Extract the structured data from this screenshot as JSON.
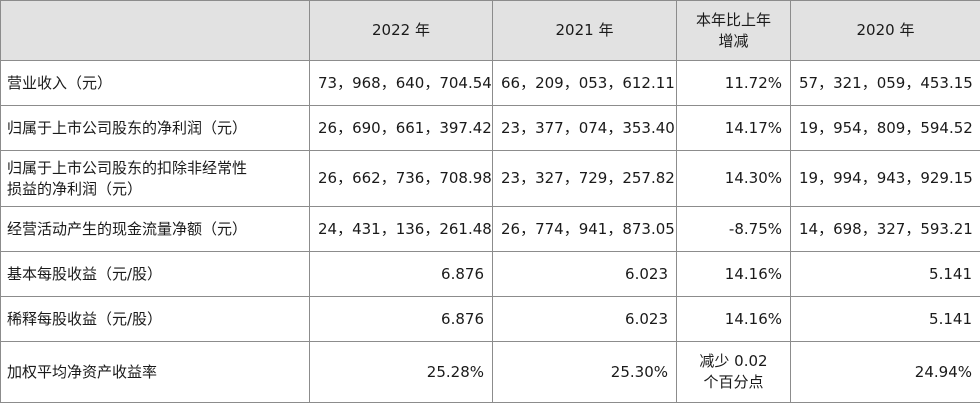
{
  "header": {
    "col0": "",
    "col1": "2022 年",
    "col2": "2021 年",
    "col3_line1": "本年比上年",
    "col3_line2": "增减",
    "col4": "2020 年"
  },
  "rows": [
    {
      "label": "营业收入（元）",
      "y2022": "73，968，640，704.54",
      "y2021": "66，209，053，612.11",
      "change": "11.72%",
      "y2020": "57，321，059，453.15"
    },
    {
      "label": "归属于上市公司股东的净利润（元）",
      "y2022": "26，690，661，397.42",
      "y2021": "23，377，074，353.40",
      "change": "14.17%",
      "y2020": "19，954，809，594.52"
    },
    {
      "label_line1": "归属于上市公司股东的扣除非经常性",
      "label_line2": "损益的净利润（元）",
      "y2022": "26，662，736，708.98",
      "y2021": "23，327，729，257.82",
      "change": "14.30%",
      "y2020": "19，994，943，929.15"
    },
    {
      "label": "经营活动产生的现金流量净额（元）",
      "y2022": "24，431，136，261.48",
      "y2021": "26，774，941，873.05",
      "change": "-8.75%",
      "y2020": "14，698，327，593.21"
    },
    {
      "label": "基本每股收益（元/股）",
      "y2022": "6.876",
      "y2021": "6.023",
      "change": "14.16%",
      "y2020": "5.141"
    },
    {
      "label": "稀释每股收益（元/股）",
      "y2022": "6.876",
      "y2021": "6.023",
      "change": "14.16%",
      "y2020": "5.141"
    },
    {
      "label": "加权平均净资产收益率",
      "y2022": "25.28%",
      "y2021": "25.30%",
      "change_line1": "减少 0.02",
      "change_line2": "个百分点",
      "y2020": "24.94%"
    }
  ]
}
